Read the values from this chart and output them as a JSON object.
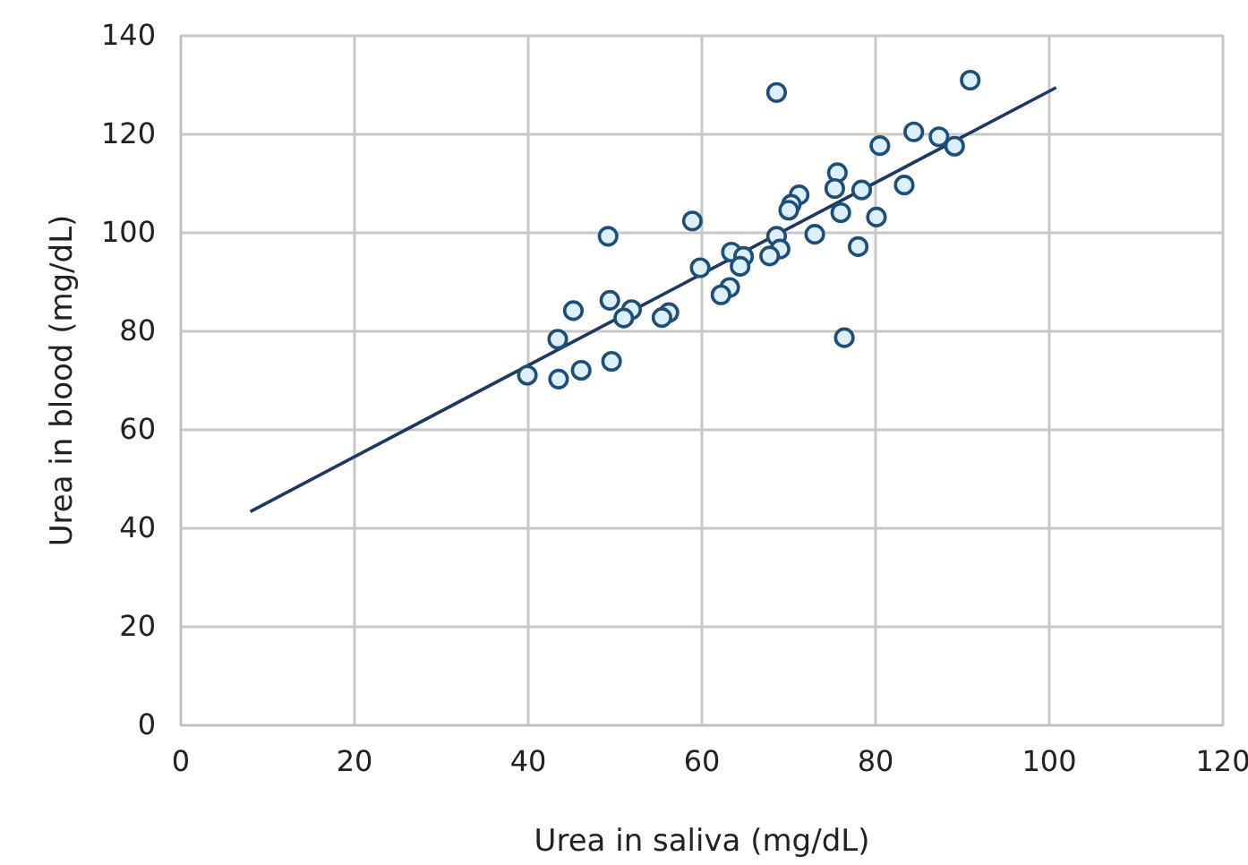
{
  "chart_data": {
    "type": "scatter",
    "xlabel": "Urea in saliva (mg/dL)",
    "ylabel": "Urea in blood (mg/dL)",
    "xlim": [
      0,
      120
    ],
    "xticks": [
      0,
      20,
      40,
      60,
      80,
      100,
      120
    ],
    "ylim": [
      0,
      140
    ],
    "yticks": [
      0,
      20,
      40,
      60,
      80,
      100,
      120,
      140
    ],
    "grid": true,
    "series": [
      {
        "marker": "circle",
        "color": "#1f4e79",
        "x": [
          68.6,
          90.9,
          84.4,
          87.3,
          89.1,
          80.5,
          75.6,
          75.3,
          78.4,
          83.3,
          71.2,
          70.3,
          70.0,
          76.0,
          80.1,
          58.9,
          49.2,
          73.0,
          68.6,
          78.0,
          69.0,
          67.8,
          63.4,
          64.8,
          64.4,
          59.8,
          63.2,
          62.2,
          49.4,
          51.9,
          45.2,
          51.0,
          56.2,
          55.4,
          76.4,
          43.4,
          49.6,
          46.1,
          39.9,
          43.5
        ],
        "values": [
          128.5,
          131,
          120.5,
          119.5,
          117.6,
          117.7,
          112.2,
          109,
          108.7,
          109.7,
          107.7,
          105.8,
          104.6,
          104.1,
          103.2,
          102.4,
          99.3,
          99.7,
          99.3,
          97.2,
          96.7,
          95.3,
          96.1,
          95.2,
          93.2,
          92.9,
          88.9,
          87.4,
          86.3,
          84.4,
          84.2,
          82.7,
          83.8,
          82.8,
          78.7,
          78.4,
          73.9,
          72.1,
          71.1,
          70.3
        ]
      },
      {
        "type": "line",
        "color": "#1f3864",
        "x": [
          8.0,
          100.8
        ],
        "values": [
          43.4,
          129.5
        ]
      }
    ]
  }
}
